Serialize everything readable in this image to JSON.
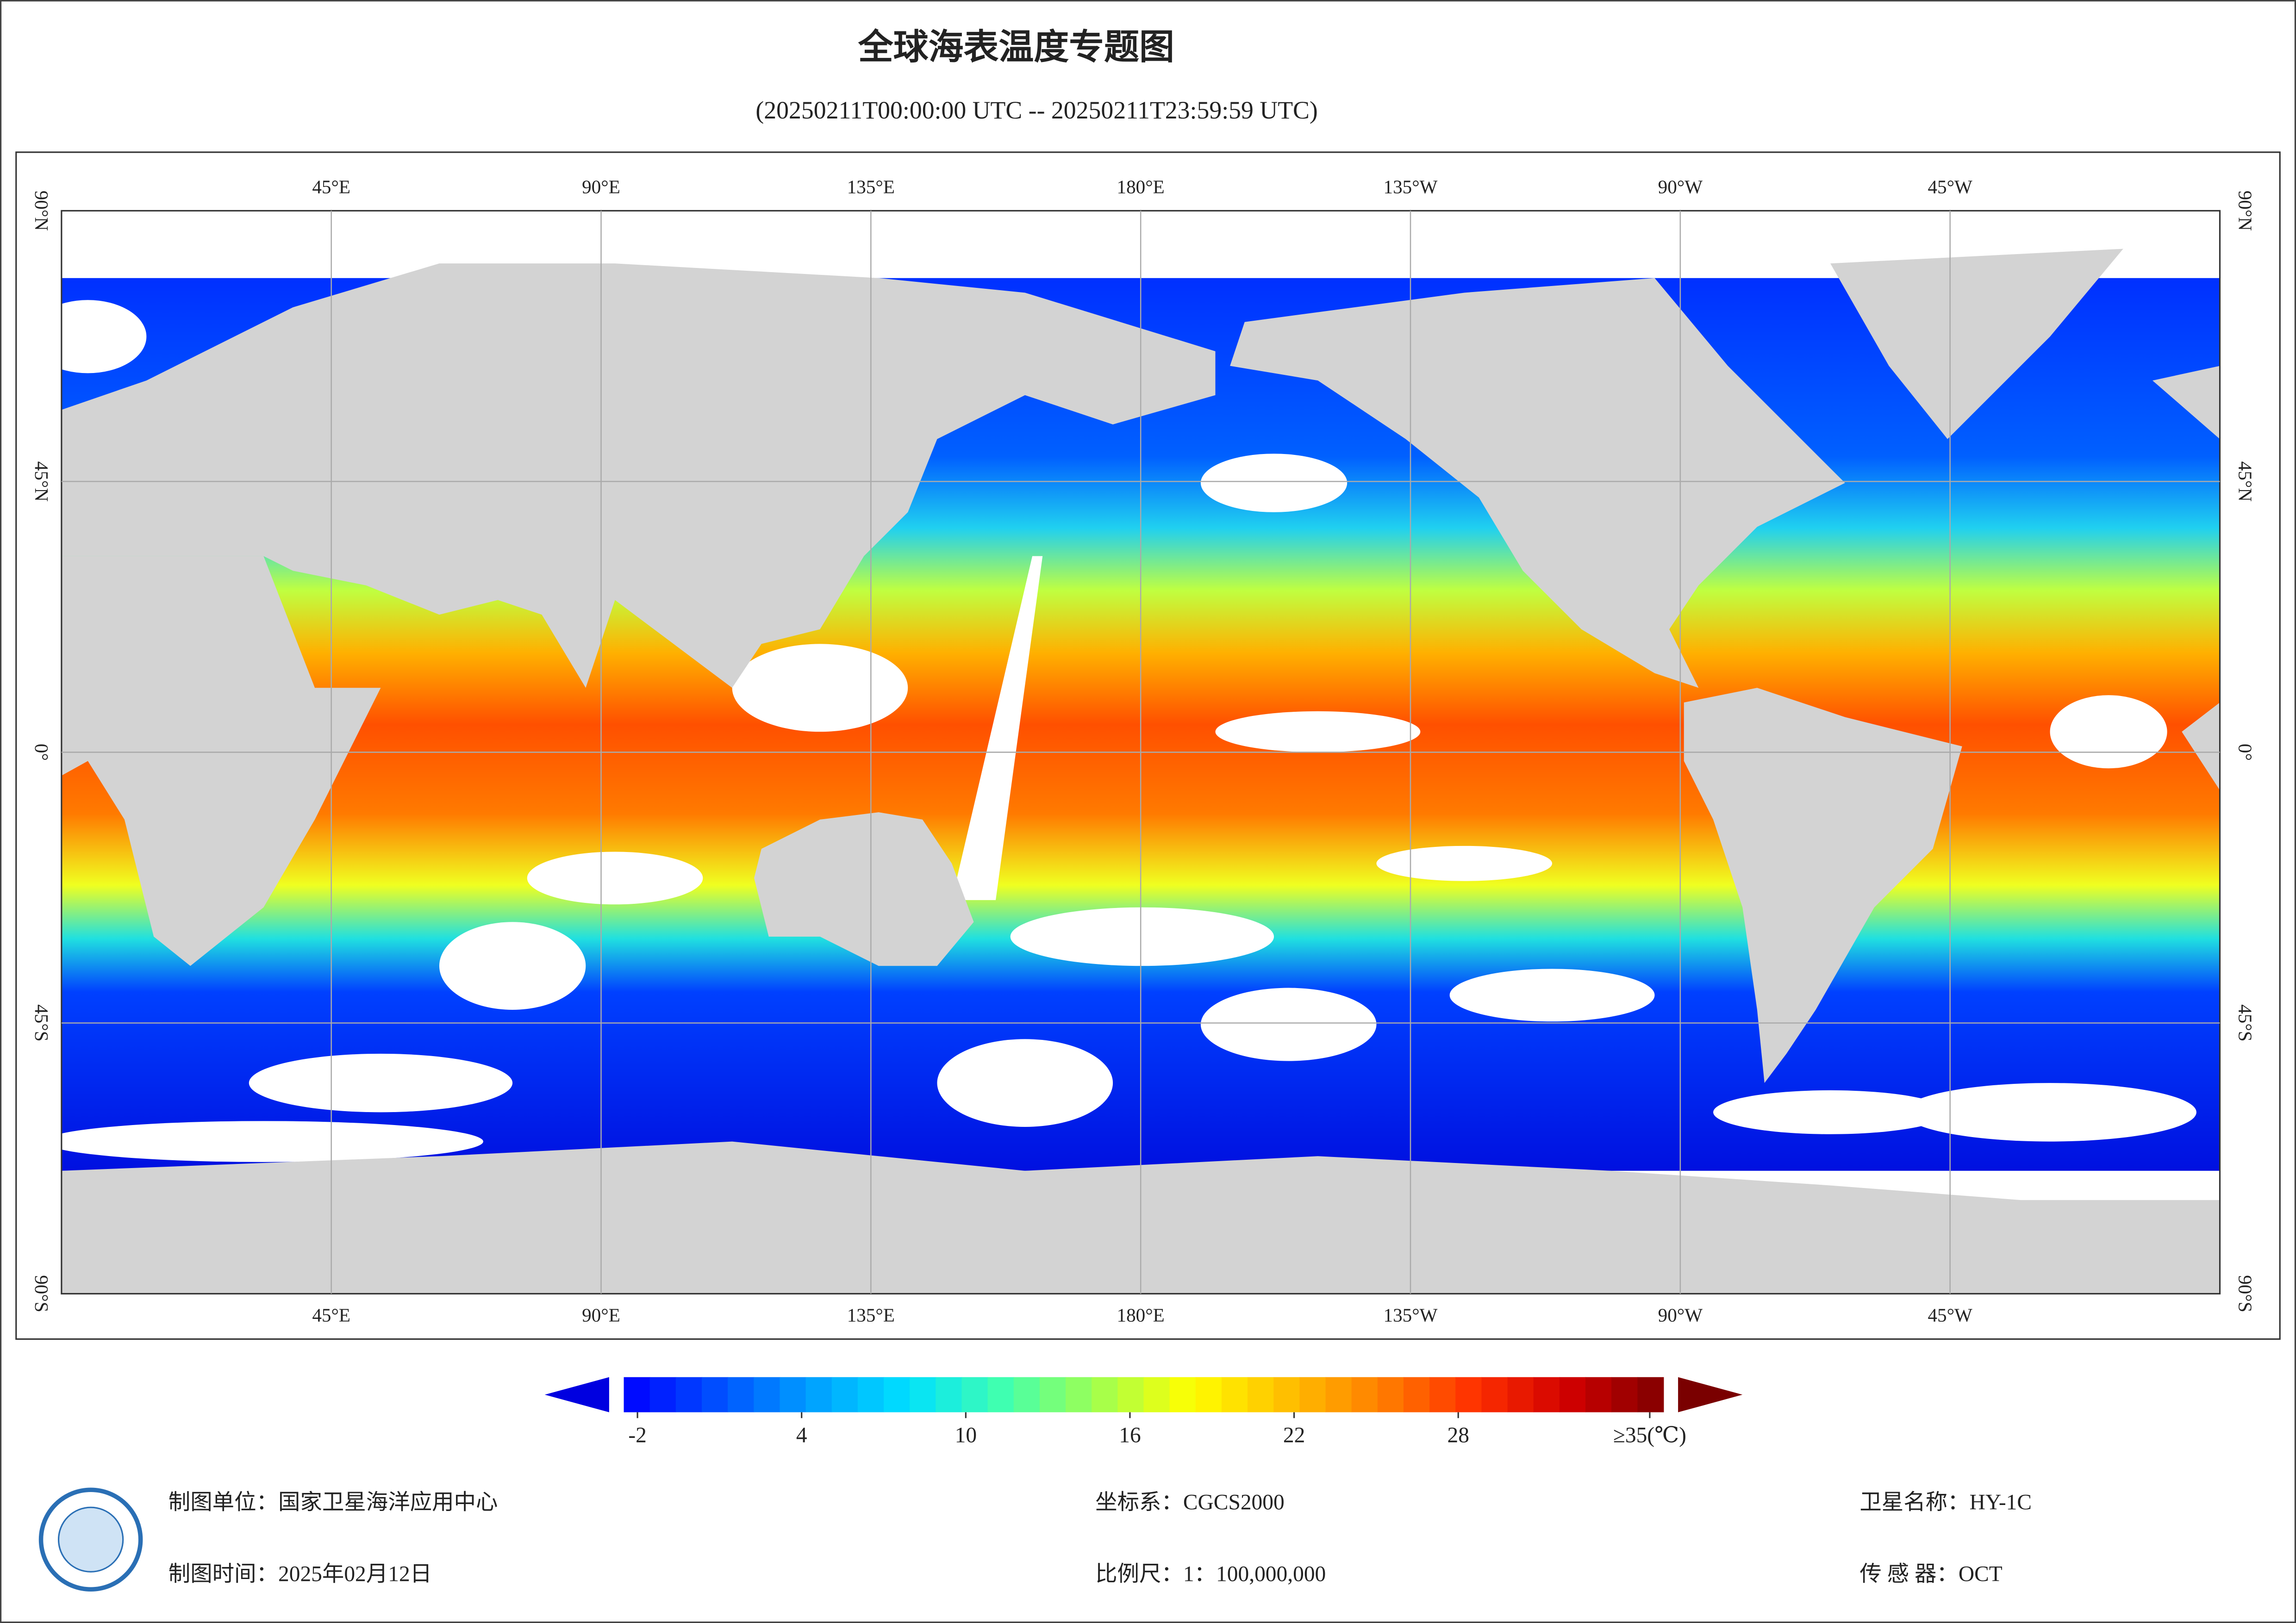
{
  "title": "全球海表温度专题图",
  "subtitle": "(20250211T00:00:00 UTC -- 20250211T23:59:59 UTC)",
  "map": {
    "lon_labels": [
      "45°E",
      "90°E",
      "135°E",
      "180°E",
      "135°W",
      "90°W",
      "45°W"
    ],
    "lat_labels": [
      "90°N",
      "45°N",
      "0°",
      "45°S",
      "90°S"
    ]
  },
  "colorbar": {
    "range": [
      -2.5,
      35.5
    ],
    "ticks": [
      -2,
      4,
      10,
      16,
      22,
      28,
      {
        "value": 35,
        "label": "≥35(℃)"
      }
    ],
    "colormap": [
      "#0000ff",
      "#0050ff",
      "#00a0ff",
      "#00e0ff",
      "#40ffb0",
      "#a0ff50",
      "#ffff00",
      "#ffc000",
      "#ff8000",
      "#ff3000",
      "#d00000",
      "#800000"
    ],
    "under_color": "#0000e0",
    "over_color": "#7a0000"
  },
  "footer": {
    "unit": "制图单位：国家卫星海洋应用中心",
    "date": "制图时间：2025年02月12日",
    "crs": "坐标系：CGCS2000",
    "scale": "比例尺：1：100,000,000",
    "satellite": "卫星名称：HY-1C",
    "sensor": "传 感 器：OCT"
  }
}
